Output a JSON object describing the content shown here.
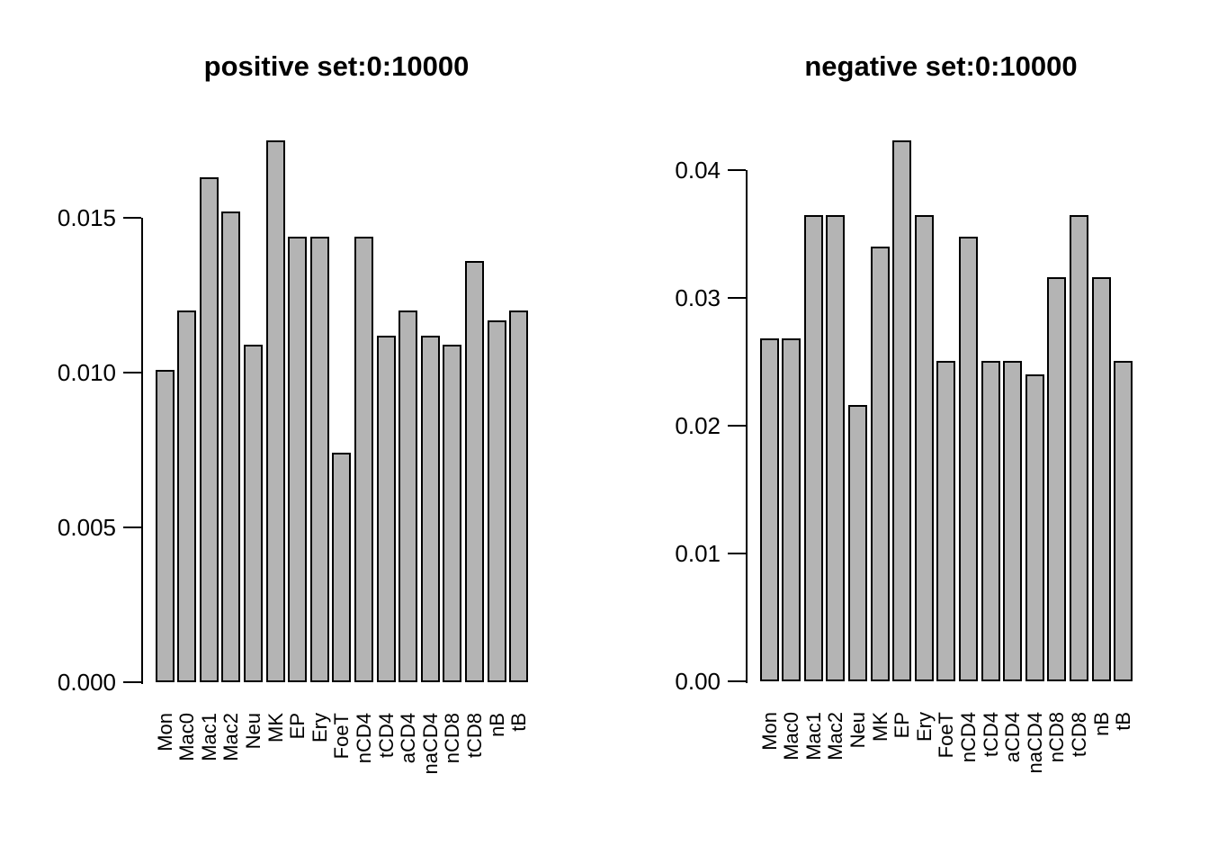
{
  "figure": {
    "background": "#ffffff",
    "text_color": "#000000"
  },
  "chart_data": [
    {
      "type": "bar",
      "title": "positive set:0:10000",
      "categories": [
        "Mon",
        "Mac0",
        "Mac1",
        "Mac2",
        "Neu",
        "MK",
        "EP",
        "Ery",
        "FoeT",
        "nCD4",
        "tCD4",
        "aCD4",
        "naCD4",
        "nCD8",
        "tCD8",
        "nB",
        "tB"
      ],
      "values": [
        0.0101,
        0.012,
        0.0163,
        0.0152,
        0.0109,
        0.0175,
        0.0144,
        0.0144,
        0.0074,
        0.0144,
        0.0112,
        0.012,
        0.0112,
        0.0109,
        0.0136,
        0.0117,
        0.012
      ],
      "yticks": [
        0,
        0.005,
        0.01,
        0.015
      ],
      "ytick_labels": [
        "0.000",
        "0.005",
        "0.010",
        "0.015"
      ],
      "ylim": [
        0,
        0.0175
      ],
      "xlabel": "",
      "ylabel": "",
      "grid": false,
      "legend_position": "none",
      "bar_color": "#b4b4b4",
      "bar_border_color": "#000000",
      "axis_color": "#000000"
    },
    {
      "type": "bar",
      "title": "negative set:0:10000",
      "categories": [
        "Mon",
        "Mac0",
        "Mac1",
        "Mac2",
        "Neu",
        "MK",
        "EP",
        "Ery",
        "FoeT",
        "nCD4",
        "tCD4",
        "aCD4",
        "naCD4",
        "nCD8",
        "tCD8",
        "nB",
        "tB"
      ],
      "values": [
        0.0268,
        0.0268,
        0.0365,
        0.0365,
        0.0216,
        0.034,
        0.0423,
        0.0365,
        0.0251,
        0.0348,
        0.0251,
        0.0251,
        0.024,
        0.0316,
        0.0365,
        0.0316,
        0.0251
      ],
      "yticks": [
        0,
        0.01,
        0.02,
        0.03,
        0.04
      ],
      "ytick_labels": [
        "0.00",
        "0.01",
        "0.02",
        "0.03",
        "0.04"
      ],
      "ylim": [
        0,
        0.0423
      ],
      "xlabel": "",
      "ylabel": "",
      "grid": false,
      "legend_position": "none",
      "bar_color": "#b4b4b4",
      "bar_border_color": "#000000",
      "axis_color": "#000000"
    }
  ]
}
